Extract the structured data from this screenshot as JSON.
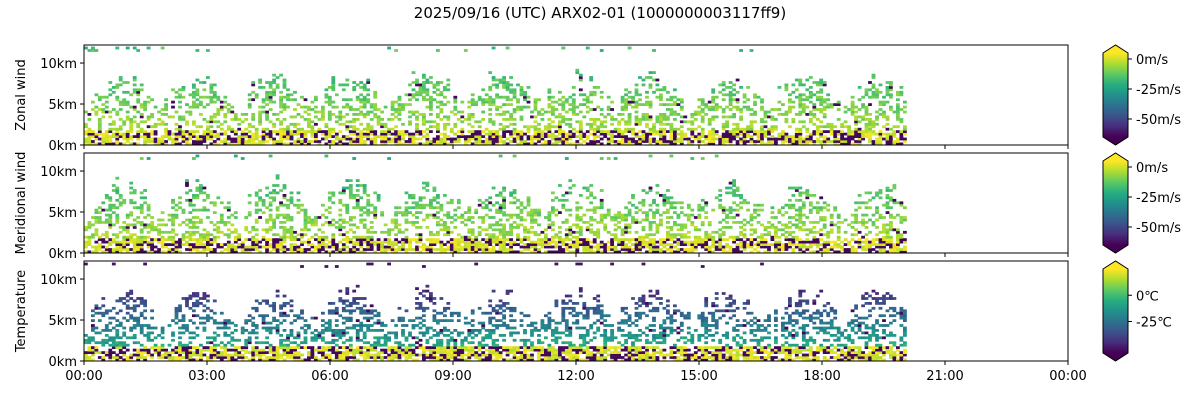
{
  "chart_data": {
    "type": "heatmap",
    "title": "2025/09/16 (UTC) ARX02-01 (1000000003117ff9)",
    "colormap": "viridis",
    "x_ticks": [
      "00:00",
      "03:00",
      "06:00",
      "09:00",
      "12:00",
      "15:00",
      "18:00",
      "21:00",
      "00:00"
    ],
    "x_range_hours": [
      0,
      24
    ],
    "data_end_hour": 20.0,
    "panels": [
      {
        "ylabel": "Zonal wind",
        "y_ticks": [
          "0km",
          "5km",
          "10km"
        ],
        "y_tick_values_km": [
          0,
          5,
          10
        ],
        "ylim_km": [
          0,
          12.2
        ],
        "colorbar": {
          "min": -65,
          "max": 5,
          "ticks": [
            {
              "value": 0,
              "label": "0m/s"
            },
            {
              "value": -25,
              "label": "-25m/s"
            },
            {
              "value": -50,
              "label": "-50m/s"
            }
          ]
        }
      },
      {
        "ylabel": "Meridional wind",
        "y_ticks": [
          "0km",
          "5km",
          "10km"
        ],
        "y_tick_values_km": [
          0,
          5,
          10
        ],
        "ylim_km": [
          0,
          12.2
        ],
        "colorbar": {
          "min": -65,
          "max": 5,
          "ticks": [
            {
              "value": 0,
              "label": "0m/s"
            },
            {
              "value": -25,
              "label": "-25m/s"
            },
            {
              "value": -50,
              "label": "-50m/s"
            }
          ]
        }
      },
      {
        "ylabel": "Temperature",
        "y_ticks": [
          "0km",
          "5km",
          "10km"
        ],
        "y_tick_values_km": [
          0,
          5,
          10
        ],
        "ylim_km": [
          0,
          12.2
        ],
        "colorbar": {
          "min": -55,
          "max": 25,
          "ticks": [
            {
              "value": 0,
              "label": "0℃"
            },
            {
              "value": -25,
              "label": "-25℃"
            }
          ]
        }
      }
    ]
  }
}
